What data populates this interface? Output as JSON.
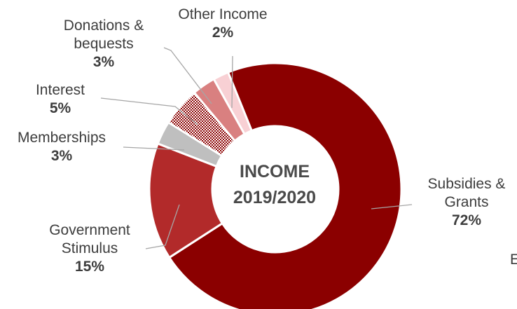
{
  "chart_data": {
    "type": "pie",
    "title": "INCOME 2019/2020",
    "center_label": [
      "INCOME",
      "2019/2020"
    ],
    "legend": "none",
    "slices": [
      {
        "name": "Subsidies & Grants",
        "label_lines": [
          "Subsidies &",
          "Grants"
        ],
        "value": 72,
        "percent_label": "72%",
        "color": "#8b0000"
      },
      {
        "name": "Government Stimulus",
        "label_lines": [
          "Government",
          "Stimulus"
        ],
        "value": 15,
        "percent_label": "15%",
        "color": "#b22a2a"
      },
      {
        "name": "Memberships",
        "label_lines": [
          "Memberships"
        ],
        "value": 3,
        "percent_label": "3%",
        "color": "#bfbfbf"
      },
      {
        "name": "Interest",
        "label_lines": [
          "Interest"
        ],
        "value": 5,
        "percent_label": "5%",
        "color": "#8b0000",
        "pattern": "checkered"
      },
      {
        "name": "Donations & bequests",
        "label_lines": [
          "Donations &",
          "bequests"
        ],
        "value": 3,
        "percent_label": "3%",
        "color": "#d98080"
      },
      {
        "name": "Other Income",
        "label_lines": [
          "Other Income"
        ],
        "value": 2,
        "percent_label": "2%",
        "color": "#f8d0d4"
      }
    ],
    "cut_off_text": "E"
  }
}
